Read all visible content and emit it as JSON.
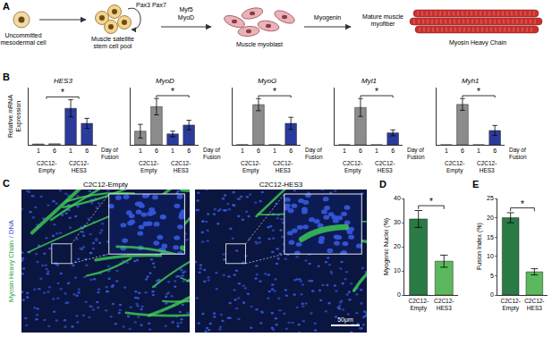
{
  "diagram": {
    "panel": "A",
    "stages": [
      "Uncommitted mesodermal cell",
      "Muscle satellite stem cell pool",
      "Muscle myoblast",
      "Mature muscle myofiber"
    ],
    "self_renewal": "Pax3 Pax7",
    "transitions": [
      {
        "from": 0,
        "to": 1,
        "labels": []
      },
      {
        "from": 1,
        "to": 2,
        "labels": [
          "Myf5",
          "MyoD"
        ]
      },
      {
        "from": 2,
        "to": 3,
        "labels": [
          "Myogenin"
        ]
      }
    ],
    "product": "Myosin Heavy Chain"
  },
  "images": {
    "panel": "C",
    "stain": [
      {
        "text": "Myosin Heavy Chain",
        "color": "#1fa33a"
      },
      {
        "text": "/ DNA",
        "color": "#2f4fd0"
      }
    ],
    "panels": [
      "C2C12-Empty",
      "C2C12-HES3"
    ],
    "scale_bar": "50μm"
  },
  "chart_data": [
    {
      "type": "bar",
      "panel": "B",
      "title": "HES3",
      "y_title": "Relative mRNA Expression",
      "x_title": "Day of Fusion",
      "categories": [
        "1",
        "6",
        "1",
        "6"
      ],
      "groups": [
        {
          "label": "C2C12-Empty",
          "members": [
            0,
            1
          ]
        },
        {
          "label": "C2C12-HES3",
          "members": [
            2,
            3
          ]
        }
      ],
      "values": [
        1.2,
        1.5,
        51,
        30
      ],
      "errors": [
        null,
        null,
        12,
        7
      ],
      "colors": [
        "#8c8c8c",
        "#8c8c8c",
        "#2b3b9c",
        "#2b3b9c"
      ],
      "ylim": [
        0,
        80
      ],
      "tick_labels": "x",
      "significance": [
        {
          "text": "*",
          "from": [
            0,
            1
          ],
          "to": [
            2,
            3
          ]
        }
      ]
    },
    {
      "type": "bar",
      "title": "MyoD",
      "x_title": "Day of Fusion",
      "categories": [
        "1",
        "6",
        "1",
        "6"
      ],
      "groups": [
        {
          "label": "C2C12-Empty",
          "members": [
            0,
            1
          ]
        },
        {
          "label": "C2C12-HES3",
          "members": [
            2,
            3
          ]
        }
      ],
      "values": [
        1.0,
        2.8,
        0.8,
        1.45
      ],
      "errors": [
        0.5,
        0.6,
        0.2,
        0.35
      ],
      "colors": [
        "#8c8c8c",
        "#8c8c8c",
        "#2b3b9c",
        "#2b3b9c"
      ],
      "ylim": [
        0,
        4.2
      ],
      "tick_labels": "x",
      "significance": [
        {
          "text": "*",
          "from": [
            1
          ],
          "to": [
            3
          ]
        }
      ]
    },
    {
      "type": "bar",
      "title": "MyoG",
      "x_title": "Day of Fusion",
      "categories": [
        "1",
        "6",
        "1",
        "6"
      ],
      "groups": [
        {
          "label": "C2C12-Empty",
          "members": [
            0,
            1
          ]
        },
        {
          "label": "C2C12-HES3",
          "members": [
            2,
            3
          ]
        }
      ],
      "values": [
        1.5,
        365,
        1,
        195
      ],
      "errors": [
        null,
        55,
        null,
        55
      ],
      "colors": [
        "#8c8c8c",
        "#8c8c8c",
        "#2b3b9c",
        "#2b3b9c"
      ],
      "ylim": [
        0,
        520
      ],
      "tick_labels": "x",
      "significance": [
        {
          "text": "*",
          "from": [
            1
          ],
          "to": [
            3
          ]
        }
      ]
    },
    {
      "type": "bar",
      "title": "Myl1",
      "x_title": "Day of Fusion",
      "categories": [
        "1",
        "6",
        "1",
        "6"
      ],
      "groups": [
        {
          "label": "C2C12-Empty",
          "members": [
            0,
            1
          ]
        },
        {
          "label": "C2C12-HES3",
          "members": [
            2,
            3
          ]
        }
      ],
      "values": [
        2,
        750,
        1,
        240
      ],
      "errors": [
        null,
        180,
        null,
        60
      ],
      "colors": [
        "#8c8c8c",
        "#8c8c8c",
        "#2b3b9c",
        "#2b3b9c"
      ],
      "ylim": [
        0,
        1150
      ],
      "tick_labels": "x",
      "significance": [
        {
          "text": "*",
          "from": [
            1
          ],
          "to": [
            3
          ]
        }
      ]
    },
    {
      "type": "bar",
      "title": "Myh1",
      "x_title": "Day of Fusion",
      "categories": [
        "1",
        "6",
        "1",
        "6"
      ],
      "groups": [
        {
          "label": "C2C12-Empty",
          "members": [
            0,
            1
          ]
        },
        {
          "label": "C2C12-HES3",
          "members": [
            2,
            3
          ]
        }
      ],
      "values": [
        1,
        480,
        1,
        170
      ],
      "errors": [
        null,
        70,
        null,
        60
      ],
      "colors": [
        "#8c8c8c",
        "#8c8c8c",
        "#2b3b9c",
        "#2b3b9c"
      ],
      "ylim": [
        0,
        680
      ],
      "tick_labels": "x",
      "significance": [
        {
          "text": "*",
          "from": [
            1
          ],
          "to": [
            3
          ]
        }
      ]
    },
    {
      "type": "bar",
      "panel": "D",
      "y_title": "Myogenic Nuclei (%)",
      "categories": [
        "C2C12-Empty",
        "C2C12-HES3"
      ],
      "values": [
        31.5,
        14
      ],
      "errors": [
        3.5,
        2.5
      ],
      "colors": [
        "#2a7a45",
        "#5cb85c"
      ],
      "ylim": [
        0,
        40
      ],
      "yticks": [
        0,
        10,
        20,
        30,
        40
      ],
      "significance": [
        {
          "text": "*",
          "from": [
            0
          ],
          "to": [
            1
          ]
        }
      ]
    },
    {
      "type": "bar",
      "panel": "E",
      "y_title": "Fusion Index (%)",
      "categories": [
        "C2C12-Empty",
        "C2C12-HES3"
      ],
      "values": [
        20,
        6
      ],
      "errors": [
        1.3,
        0.8
      ],
      "colors": [
        "#2a7a45",
        "#5cb85c"
      ],
      "ylim": [
        0,
        25
      ],
      "yticks": [
        0,
        5,
        10,
        15,
        20,
        25
      ],
      "significance": [
        {
          "text": "*",
          "from": [
            0
          ],
          "to": [
            1
          ]
        }
      ]
    }
  ]
}
